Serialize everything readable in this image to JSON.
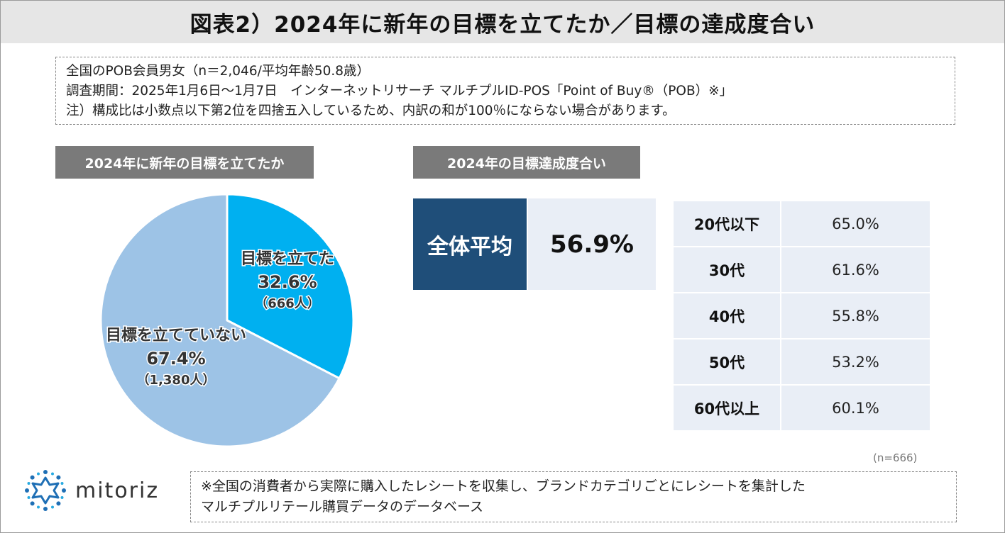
{
  "title": "図表2）2024年に新年の目標を立てたか／目標の達成度合い",
  "notes": [
    "全国のPOB会員男女（n＝2,046/平均年齢50.8歳）",
    "調査期間：2025年1月6日～1月7日　インターネットリサーチ マルチプルID-POS「Point of Buy®（POB）※」",
    "注）構成比は小数点以下第2位を四捨五入しているため、内訳の和が100％にならない場合があります。"
  ],
  "left_section_label": "2024年に新年の目標を立てたか",
  "right_section_label": "2024年の目標達成度合い",
  "colors": {
    "set_goal": "#00b0f0",
    "no_goal": "#9dc3e6",
    "avg_bg": "#1f4e79",
    "cell_bg": "#e9eef6",
    "label_bg": "#7a7a7a"
  },
  "chart_data": [
    {
      "type": "pie",
      "title": "2024年に新年の目標を立てたか",
      "slices": [
        {
          "label": "目標を立てた",
          "value": 32.6,
          "count": "（666人）",
          "value_text": "32.6%",
          "color": "#00b0f0"
        },
        {
          "label": "目標を立てていない",
          "value": 67.4,
          "count": "（1,380人）",
          "value_text": "67.4%",
          "color": "#9dc3e6"
        }
      ]
    },
    {
      "type": "table",
      "title": "2024年の目標達成度合い",
      "overall": {
        "label": "全体平均",
        "value": "56.9%"
      },
      "rows": [
        {
          "age": "20代以下",
          "value": "65.0%"
        },
        {
          "age": "30代",
          "value": "61.6%"
        },
        {
          "age": "40代",
          "value": "55.8%"
        },
        {
          "age": "50代",
          "value": "53.2%"
        },
        {
          "age": "60代以上",
          "value": "60.1%"
        }
      ],
      "n_note": "(n=666)"
    }
  ],
  "logo": {
    "text": "mitoriz",
    "icon": "sun-burst-logo-icon"
  },
  "footnote": [
    "※全国の消費者から実際に購入したレシートを収集し、ブランドカテゴリごとにレシートを集計した",
    "マルチプルリテール購買データのデータベース"
  ]
}
